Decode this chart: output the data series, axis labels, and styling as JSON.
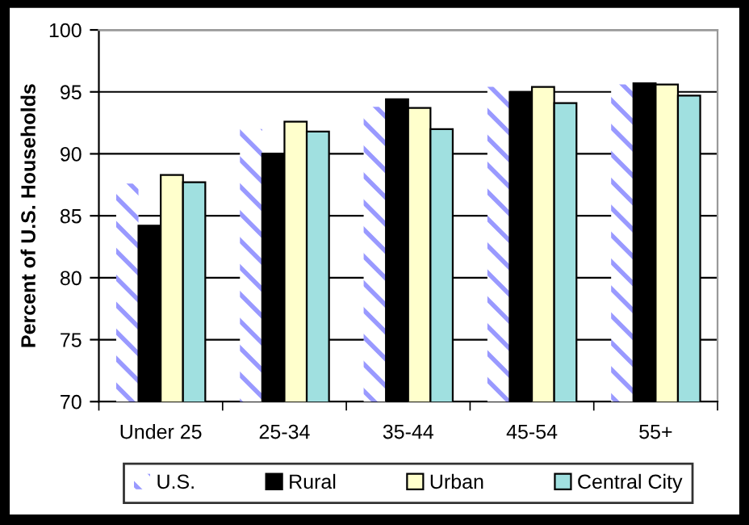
{
  "chart_data": {
    "type": "bar",
    "ylabel": "Percent of U.S. Households",
    "categories": [
      "Under 25",
      "25-34",
      "35-44",
      "45-54",
      "55+"
    ],
    "series": [
      {
        "name": "U.S.",
        "color": "#9999ff",
        "values": [
          87.6,
          92.0,
          93.8,
          95.4,
          95.6
        ]
      },
      {
        "name": "Rural",
        "color": "#000000",
        "values": [
          84.2,
          90.0,
          94.4,
          95.0,
          95.7
        ]
      },
      {
        "name": "Urban",
        "color": "#ffffcc",
        "values": [
          88.3,
          92.6,
          93.7,
          95.4,
          95.6
        ]
      },
      {
        "name": "Central City",
        "color": "#a0e0e0",
        "values": [
          87.7,
          91.8,
          92.0,
          94.1,
          94.7
        ]
      }
    ],
    "ylim": [
      70,
      100
    ],
    "yticks": [
      70,
      75,
      80,
      85,
      90,
      95,
      100
    ],
    "grid": "y",
    "legend": "bottom"
  }
}
